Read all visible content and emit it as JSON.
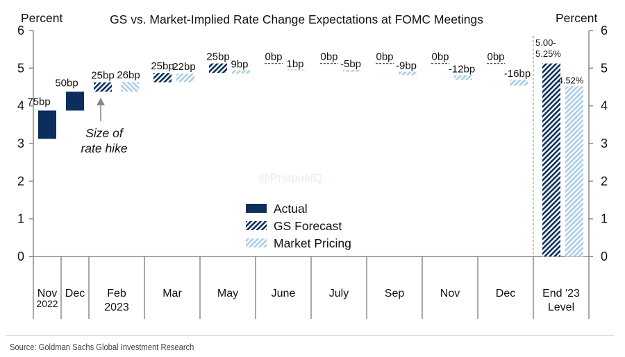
{
  "chart_data": {
    "type": "bar",
    "title": "GS vs. Market-Implied Rate Change Expectations at FOMC Meetings",
    "ylabel_left": "Percent",
    "ylabel_right": "Percent",
    "ylim": [
      0,
      6
    ],
    "yticks": [
      "0",
      "1",
      "2",
      "3",
      "4",
      "5",
      "6"
    ],
    "grid": false,
    "legend_position": "center-bottom",
    "categories": [
      {
        "label": "Nov",
        "sub": "2022"
      },
      {
        "label": "Dec",
        "sub": ""
      },
      {
        "label": "Feb",
        "sub": "2023"
      },
      {
        "label": "Mar",
        "sub": ""
      },
      {
        "label": "May",
        "sub": ""
      },
      {
        "label": "June",
        "sub": ""
      },
      {
        "label": "July",
        "sub": ""
      },
      {
        "label": "Sep",
        "sub": ""
      },
      {
        "label": "Nov",
        "sub": ""
      },
      {
        "label": "Dec",
        "sub": ""
      },
      {
        "label": "End '23",
        "sub": "Level"
      }
    ],
    "series": [
      {
        "name": "Actual",
        "color": "#0b2e5c",
        "pattern": "solid",
        "values": [
          {
            "category": 0,
            "from": 3.125,
            "to": 3.875,
            "label": "75bp"
          },
          {
            "category": 1,
            "from": 3.875,
            "to": 4.375,
            "label": "50bp"
          }
        ]
      },
      {
        "name": "GS Forecast",
        "color": "#0b2e5c",
        "pattern": "hatch",
        "values": [
          {
            "category": 2,
            "from": 4.375,
            "to": 4.625,
            "label": "25bp"
          },
          {
            "category": 3,
            "from": 4.625,
            "to": 4.875,
            "label": "25bp"
          },
          {
            "category": 4,
            "from": 4.875,
            "to": 5.125,
            "label": "25bp"
          },
          {
            "category": 5,
            "from": 5.125,
            "to": 5.125,
            "label": "0bp"
          },
          {
            "category": 6,
            "from": 5.125,
            "to": 5.125,
            "label": "0bp"
          },
          {
            "category": 7,
            "from": 5.125,
            "to": 5.125,
            "label": "0bp"
          },
          {
            "category": 8,
            "from": 5.125,
            "to": 5.125,
            "label": "0bp"
          },
          {
            "category": 9,
            "from": 5.125,
            "to": 5.125,
            "label": "0bp"
          },
          {
            "category": 10,
            "from": 0,
            "to": 5.125,
            "label": "5.00-\n5.25%"
          }
        ]
      },
      {
        "name": "Market Pricing",
        "color": "#9cc4df",
        "pattern": "hatch",
        "values": [
          {
            "category": 2,
            "from": 4.375,
            "to": 4.635,
            "label": "26bp"
          },
          {
            "category": 3,
            "from": 4.635,
            "to": 4.855,
            "label": "22bp"
          },
          {
            "category": 4,
            "from": 4.855,
            "to": 4.945,
            "label": "9bp"
          },
          {
            "category": 5,
            "from": 4.945,
            "to": 4.955,
            "label": "1bp"
          },
          {
            "category": 6,
            "from": 4.955,
            "to": 4.905,
            "label": "-5bp"
          },
          {
            "category": 7,
            "from": 4.905,
            "to": 4.815,
            "label": "-9bp"
          },
          {
            "category": 8,
            "from": 4.815,
            "to": 4.695,
            "label": "-12bp"
          },
          {
            "category": 9,
            "from": 4.695,
            "to": 4.535,
            "label": "-16bp"
          },
          {
            "category": 10,
            "from": 0,
            "to": 4.52,
            "label": "4.52%"
          }
        ]
      }
    ],
    "annotation": {
      "text_line1": "Size of",
      "text_line2": "rate hike",
      "points_to_category": 2
    },
    "watermark": "@PriapusIQ",
    "source": "Source: Goldman Sachs Global Investment Research"
  }
}
